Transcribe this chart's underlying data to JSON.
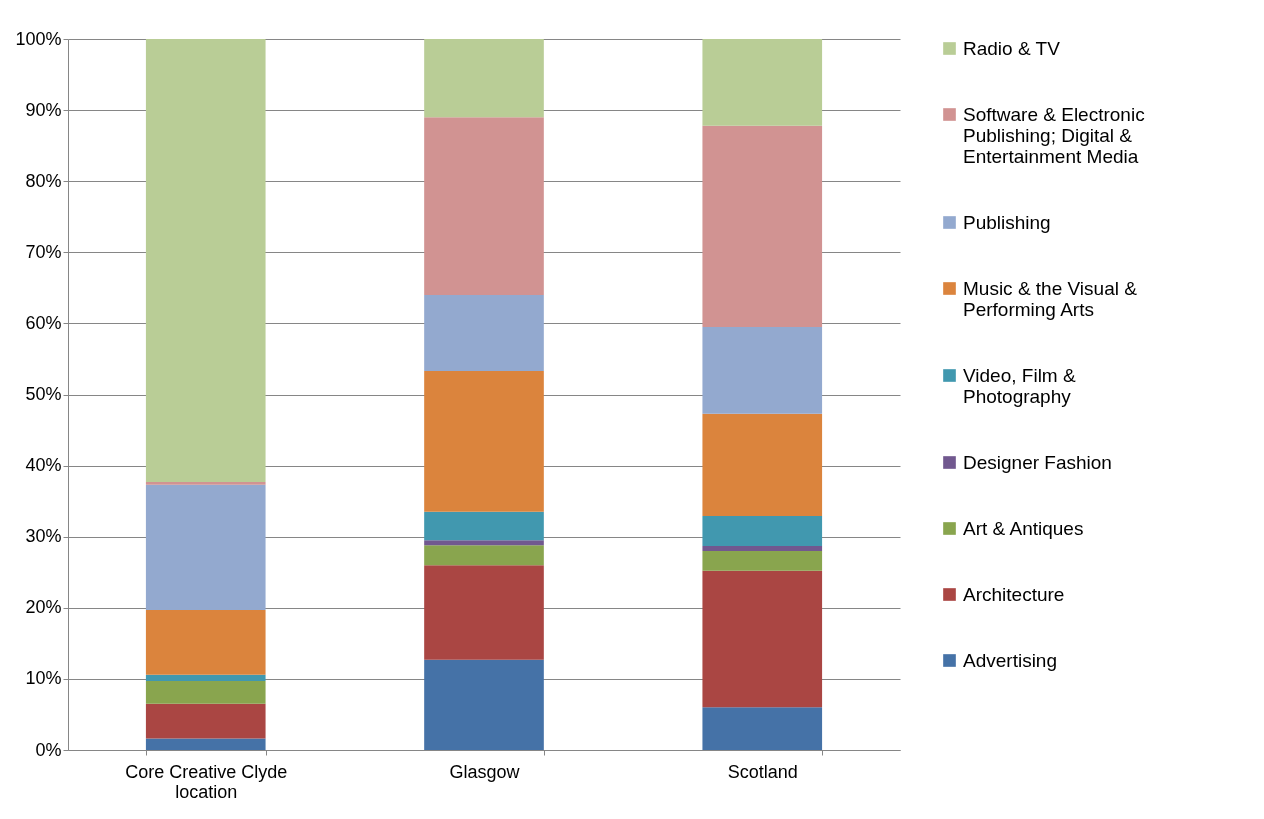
{
  "chart_data": {
    "type": "bar",
    "stacked": true,
    "categories": [
      "Core Creative Clyde location",
      "Glasgow",
      "Scotland"
    ],
    "series": [
      {
        "name": "Advertising",
        "color": "#4572a7",
        "values": [
          1.6,
          12.7,
          6.0
        ]
      },
      {
        "name": "Architecture",
        "color": "#aa4643",
        "values": [
          4.9,
          13.3,
          19.2
        ]
      },
      {
        "name": "Art & Antiques",
        "color": "#89a54e",
        "values": [
          3.2,
          2.8,
          2.8
        ]
      },
      {
        "name": "Designer Fashion",
        "color": "#71588f",
        "values": [
          0,
          0.7,
          0.7
        ]
      },
      {
        "name": "Video, Film & Photography",
        "color": "#4198af",
        "values": [
          0.9,
          4.0,
          4.2
        ]
      },
      {
        "name": "Music & the Visual & Performing Arts",
        "color": "#db843d",
        "values": [
          9.1,
          19.8,
          14.4
        ]
      },
      {
        "name": "Publishing",
        "color": "#93a9cf",
        "values": [
          17.6,
          10.7,
          12.2
        ]
      },
      {
        "name": "Software & Electronic Publishing; Digital & Entertainment Media",
        "color": "#d19392",
        "values": [
          0.4,
          25.0,
          28.3
        ]
      },
      {
        "name": "Radio & TV",
        "color": "#b9cd96",
        "values": [
          62.3,
          11.0,
          12.2
        ]
      }
    ],
    "ylim": [
      0,
      100
    ],
    "yticks": [
      {
        "value": 0,
        "label": "0%"
      },
      {
        "value": 10,
        "label": "10%"
      },
      {
        "value": 20,
        "label": "20%"
      },
      {
        "value": 30,
        "label": "30%"
      },
      {
        "value": 40,
        "label": "40%"
      },
      {
        "value": 50,
        "label": "50%"
      },
      {
        "value": 60,
        "label": "60%"
      },
      {
        "value": 70,
        "label": "70%"
      },
      {
        "value": 80,
        "label": "80%"
      },
      {
        "value": 90,
        "label": "90%"
      },
      {
        "value": 100,
        "label": "100%"
      }
    ],
    "grid": "y",
    "legend": "right"
  }
}
